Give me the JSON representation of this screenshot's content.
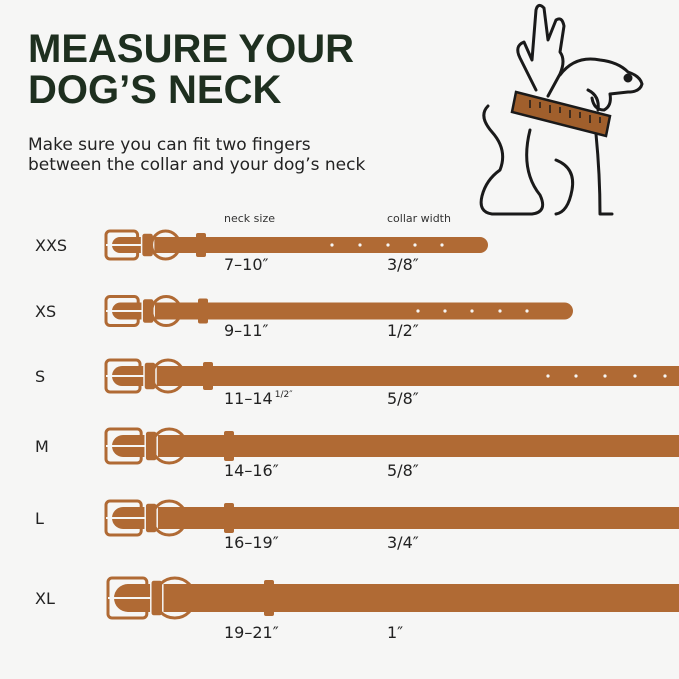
{
  "header": {
    "title_lines": [
      "MEASURE YOUR",
      "DOG’S NECK"
    ],
    "subtitle_lines": [
      "Make sure you can fit two fingers",
      "between the collar and your dog’s neck"
    ]
  },
  "table": {
    "columns": [
      "neck size",
      "collar width"
    ],
    "rows": [
      {
        "size": "XXS",
        "neck": "7–10″",
        "width": "3/8″"
      },
      {
        "size": "XS",
        "neck": "9–11″",
        "width": "1/2″"
      },
      {
        "size": "S",
        "neck": "11–14",
        "neck_fraction": "1/2″",
        "width": "5/8″"
      },
      {
        "size": "M",
        "neck": "14–16″",
        "width": "5/8″"
      },
      {
        "size": "L",
        "neck": "16–19″",
        "width": "3/4″"
      },
      {
        "size": "XL",
        "neck": "19–21″",
        "width": "1″"
      }
    ]
  }
}
